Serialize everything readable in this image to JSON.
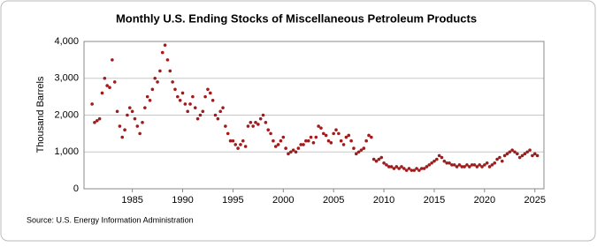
{
  "chart_data": {
    "type": "scatter",
    "title": "Monthly U.S. Ending Stocks of Miscellaneous Petroleum Products",
    "y_label": "Thousand Barrels",
    "source": "Source: U.S. Energy Information Administration",
    "color": "#a01c1c",
    "grid": true,
    "xlim": [
      1980.2,
      2025.9
    ],
    "xticks": [
      1985,
      1990,
      1995,
      2000,
      2005,
      2010,
      2015,
      2020,
      2025
    ],
    "ylim": [
      0,
      4000
    ],
    "yticks": [
      0,
      {
        "value": 1000,
        "label": "1,000"
      },
      {
        "value": 2000,
        "label": "2,000"
      },
      {
        "value": 3000,
        "label": "3,000"
      },
      {
        "value": 4000,
        "label": "4,000"
      }
    ],
    "x": [
      1981,
      1981.25,
      1981.5,
      1981.75,
      1982,
      1982.25,
      1982.5,
      1982.75,
      1983,
      1983.25,
      1983.5,
      1983.75,
      1984,
      1984.25,
      1984.5,
      1984.75,
      1985,
      1985.25,
      1985.5,
      1985.75,
      1986,
      1986.25,
      1986.5,
      1986.75,
      1987,
      1987.25,
      1987.5,
      1987.75,
      1988,
      1988.25,
      1988.5,
      1988.75,
      1989,
      1989.25,
      1989.5,
      1989.75,
      1990,
      1990.25,
      1990.5,
      1990.75,
      1991,
      1991.25,
      1991.5,
      1991.75,
      1992,
      1992.25,
      1992.5,
      1992.75,
      1993,
      1993.25,
      1993.5,
      1993.75,
      1994,
      1994.25,
      1994.5,
      1994.75,
      1995,
      1995.25,
      1995.5,
      1995.75,
      1996,
      1996.25,
      1996.5,
      1996.75,
      1997,
      1997.25,
      1997.5,
      1997.75,
      1998,
      1998.25,
      1998.5,
      1998.75,
      1999,
      1999.25,
      1999.5,
      1999.75,
      2000,
      2000.25,
      2000.5,
      2000.75,
      2001,
      2001.25,
      2001.5,
      2001.75,
      2002,
      2002.25,
      2002.5,
      2002.75,
      2003,
      2003.25,
      2003.5,
      2003.75,
      2004,
      2004.25,
      2004.5,
      2004.75,
      2005,
      2005.25,
      2005.5,
      2005.75,
      2006,
      2006.25,
      2006.5,
      2006.75,
      2007,
      2007.25,
      2007.5,
      2007.75,
      2008,
      2008.25,
      2008.5,
      2008.75,
      2009,
      2009.25,
      2009.5,
      2009.75,
      2010,
      2010.25,
      2010.5,
      2010.75,
      2011,
      2011.25,
      2011.5,
      2011.75,
      2012,
      2012.25,
      2012.5,
      2012.75,
      2013,
      2013.25,
      2013.5,
      2013.75,
      2014,
      2014.25,
      2014.5,
      2014.75,
      2015,
      2015.25,
      2015.5,
      2015.75,
      2016,
      2016.25,
      2016.5,
      2016.75,
      2017,
      2017.25,
      2017.5,
      2017.75,
      2018,
      2018.25,
      2018.5,
      2018.75,
      2019,
      2019.25,
      2019.5,
      2019.75,
      2020,
      2020.25,
      2020.5,
      2020.75,
      2021,
      2021.25,
      2021.5,
      2021.75,
      2022,
      2022.25,
      2022.5,
      2022.75,
      2023,
      2023.25,
      2023.5,
      2023.75,
      2024,
      2024.25,
      2024.5,
      2024.75,
      2025,
      2025.25
    ],
    "values": [
      2300,
      1800,
      1850,
      1900,
      2600,
      3000,
      2800,
      2750,
      3500,
      2900,
      2100,
      1700,
      1400,
      1600,
      2000,
      2200,
      2100,
      1900,
      1700,
      1500,
      1800,
      2200,
      2500,
      2400,
      2700,
      3000,
      2900,
      3200,
      3700,
      3900,
      3500,
      3200,
      2900,
      2700,
      2500,
      2400,
      2600,
      2300,
      2100,
      2300,
      2500,
      2200,
      1900,
      2000,
      2100,
      2500,
      2700,
      2600,
      2400,
      2000,
      1900,
      2100,
      2200,
      1700,
      1500,
      1300,
      1300,
      1200,
      1100,
      1200,
      1300,
      1150,
      1700,
      1800,
      1700,
      1800,
      1750,
      1900,
      2000,
      1800,
      1600,
      1500,
      1300,
      1150,
      1200,
      1300,
      1400,
      1100,
      950,
      1000,
      1050,
      1000,
      1100,
      1200,
      1200,
      1300,
      1300,
      1400,
      1250,
      1400,
      1700,
      1650,
      1500,
      1450,
      1300,
      1250,
      1500,
      1600,
      1500,
      1300,
      1200,
      1400,
      1450,
      1300,
      1100,
      950,
      1000,
      1050,
      1100,
      1300,
      1450,
      1400,
      800,
      750,
      800,
      850,
      700,
      650,
      600,
      600,
      550,
      600,
      550,
      600,
      550,
      500,
      550,
      500,
      500,
      550,
      500,
      550,
      550,
      600,
      650,
      700,
      750,
      800,
      900,
      850,
      750,
      700,
      700,
      650,
      650,
      600,
      650,
      600,
      600,
      650,
      600,
      650,
      650,
      600,
      650,
      600,
      650,
      700,
      600,
      650,
      700,
      800,
      850,
      750,
      900,
      950,
      1000,
      1050,
      1000,
      950,
      850,
      900,
      950,
      1000,
      1050,
      900,
      950,
      900
    ]
  }
}
